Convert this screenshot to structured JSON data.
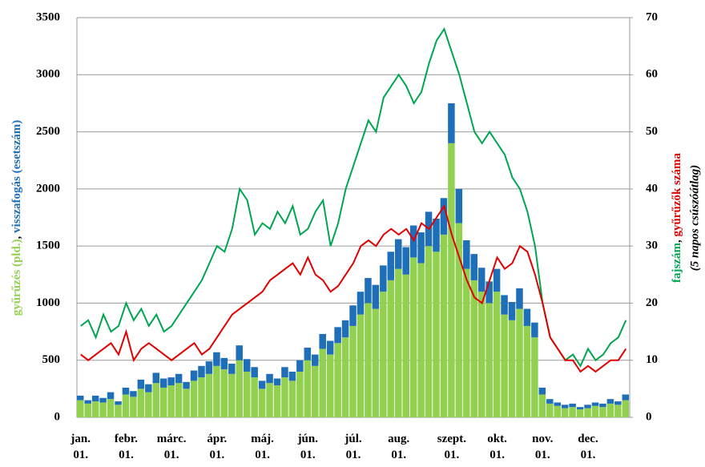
{
  "chart_data": {
    "type": "bar",
    "categories": [
      "jan.\n01.",
      null,
      null,
      null,
      null,
      null,
      "febr.\n01.",
      null,
      null,
      null,
      null,
      null,
      "márc.\n01.",
      null,
      null,
      null,
      null,
      null,
      "ápr.\n01.",
      null,
      null,
      null,
      null,
      null,
      "máj.\n01.",
      null,
      null,
      null,
      null,
      null,
      "jún.\n01.",
      null,
      null,
      null,
      null,
      null,
      "júl.\n01.",
      null,
      null,
      null,
      null,
      null,
      "aug.\n01.",
      null,
      null,
      null,
      null,
      null,
      null,
      "szept.\n01.",
      null,
      null,
      null,
      null,
      null,
      "okt.\n01.",
      null,
      null,
      null,
      null,
      null,
      "nov.\n01.",
      null,
      null,
      null,
      null,
      null,
      "dec.\n01.",
      null,
      null,
      null,
      null,
      null
    ],
    "separator": ", ",
    "y2label_note": "(5 napos csúszóátlag)",
    "series": [
      {
        "name": "gyűrűzés (pld.)",
        "color": "#92d050",
        "stack": true,
        "values": [
          150,
          120,
          140,
          130,
          160,
          110,
          200,
          180,
          250,
          220,
          300,
          260,
          280,
          300,
          250,
          320,
          350,
          380,
          450,
          420,
          380,
          500,
          400,
          350,
          250,
          300,
          280,
          350,
          320,
          400,
          500,
          450,
          600,
          550,
          650,
          700,
          800,
          900,
          1000,
          950,
          1100,
          1200,
          1300,
          1250,
          1400,
          1350,
          1500,
          1450,
          1600,
          2400,
          1700,
          1300,
          1200,
          1100,
          1000,
          1100,
          900,
          850,
          950,
          800,
          700,
          200,
          120,
          100,
          80,
          90,
          70,
          80,
          100,
          90,
          120,
          110,
          150
        ]
      },
      {
        "name": "visszafogás (esetszám)",
        "color": "#1f6fb8",
        "stack": true,
        "values": [
          40,
          30,
          50,
          40,
          60,
          30,
          60,
          50,
          80,
          70,
          90,
          80,
          70,
          80,
          60,
          90,
          100,
          110,
          120,
          100,
          90,
          130,
          110,
          90,
          70,
          80,
          60,
          90,
          80,
          100,
          110,
          100,
          130,
          120,
          140,
          150,
          180,
          200,
          220,
          210,
          230,
          250,
          260,
          240,
          280,
          270,
          300,
          290,
          320,
          350,
          300,
          250,
          230,
          210,
          190,
          200,
          170,
          160,
          180,
          150,
          130,
          60,
          40,
          30,
          30,
          30,
          20,
          30,
          30,
          30,
          40,
          30,
          50
        ]
      },
      {
        "name": "fajszám",
        "color": "#00a550",
        "axis": "y2",
        "kind": "line",
        "values": [
          16,
          17,
          14,
          18,
          15,
          16,
          20,
          17,
          19,
          16,
          18,
          15,
          16,
          18,
          20,
          22,
          24,
          27,
          30,
          29,
          33,
          40,
          38,
          32,
          34,
          33,
          36,
          34,
          37,
          32,
          33,
          36,
          38,
          30,
          34,
          40,
          44,
          48,
          52,
          50,
          56,
          58,
          60,
          58,
          55,
          57,
          62,
          66,
          68,
          64,
          60,
          55,
          50,
          48,
          50,
          48,
          46,
          42,
          40,
          36,
          30,
          20,
          14,
          12,
          10,
          11,
          9,
          12,
          10,
          11,
          13,
          14,
          17
        ]
      },
      {
        "name": "gyűrűzők száma",
        "color": "#e00000",
        "axis": "y2",
        "kind": "line",
        "values": [
          11,
          10,
          11,
          12,
          13,
          11,
          15,
          10,
          12,
          13,
          12,
          11,
          10,
          11,
          12,
          13,
          11,
          12,
          14,
          16,
          18,
          19,
          20,
          21,
          22,
          24,
          25,
          26,
          27,
          25,
          28,
          25,
          24,
          22,
          23,
          25,
          27,
          30,
          31,
          30,
          32,
          33,
          32,
          33,
          31,
          34,
          33,
          35,
          37,
          32,
          28,
          24,
          21,
          20,
          24,
          28,
          26,
          27,
          30,
          29,
          25,
          20,
          14,
          12,
          10,
          10,
          8,
          9,
          8,
          9,
          10,
          10,
          12
        ]
      }
    ],
    "ylim": [
      0,
      3500
    ],
    "yticks": [
      0,
      500,
      1000,
      1500,
      2000,
      2500,
      3000,
      3500
    ],
    "y2lim": [
      0,
      70
    ],
    "y2ticks": [
      0,
      10,
      20,
      30,
      40,
      50,
      60,
      70
    ],
    "grid": true
  }
}
